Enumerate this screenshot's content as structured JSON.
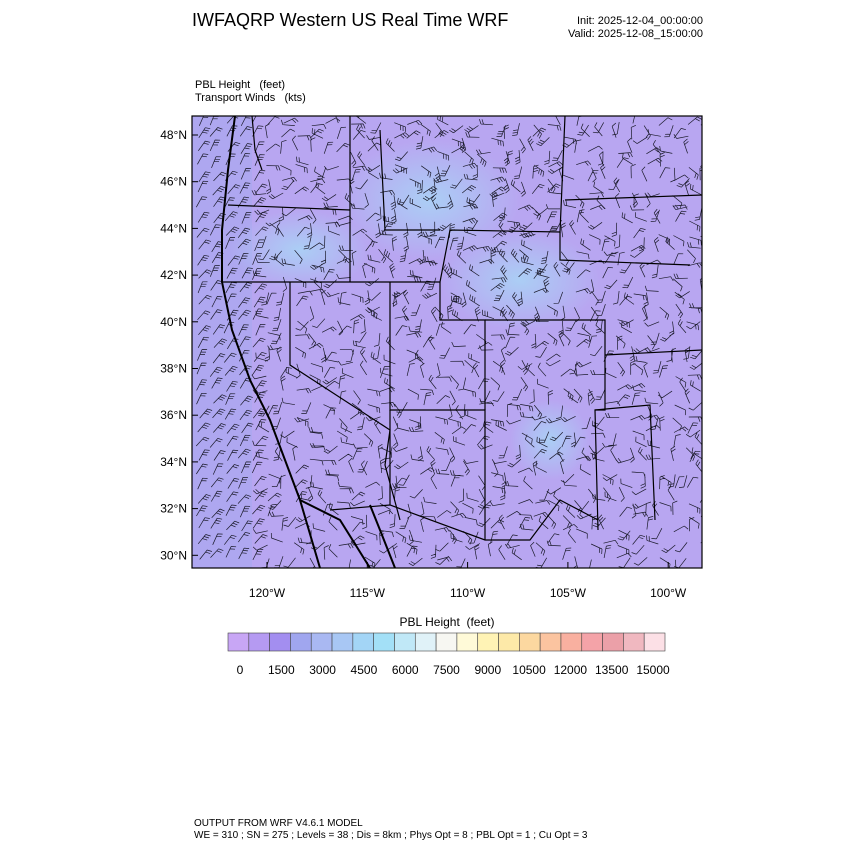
{
  "header": {
    "title": "IWFAQRP Western US Real Time WRF",
    "init": "Init: 2025-12-04_00:00:00",
    "valid": "Valid: 2025-12-08_15:00:00"
  },
  "map": {
    "field_label": "PBL Height   (feet)",
    "wind_label": "Transport Winds   (kts)",
    "xticks": [
      "120°W",
      "115°W",
      "110°W",
      "105°W",
      "100°W"
    ],
    "yticks": [
      "48°N",
      "46°N",
      "44°N",
      "42°N",
      "40°N",
      "38°N",
      "36°N",
      "34°N",
      "32°N",
      "30°N"
    ]
  },
  "colorbar": {
    "title": "PBL Height  (feet)",
    "labels": [
      "0",
      "1500",
      "3000",
      "4500",
      "6000",
      "7500",
      "9000",
      "10500",
      "12000",
      "13500",
      "15000"
    ],
    "colors": [
      "#c8a6f5",
      "#b59af2",
      "#a38ef0",
      "#a0a6ef",
      "#a9b8f2",
      "#a8c7f4",
      "#a3d5f6",
      "#a3e0f7",
      "#c0e8f7",
      "#e0f2f8",
      "#f7f7f2",
      "#fffad8",
      "#fff3b5",
      "#fde9a8",
      "#fcd8a0",
      "#fbc4a0",
      "#f9b0a0",
      "#f4a3a8",
      "#eba0a8",
      "#f0b8c0",
      "#fce0e6"
    ]
  },
  "footer": {
    "line1": "OUTPUT FROM WRF V4.6.1 MODEL",
    "line2": "WE = 310 ; SN = 275 ; Levels = 38 ; Dis = 8km ; Phys Opt = 8 ; PBL Opt = 1 ; Cu Opt = 3"
  }
}
